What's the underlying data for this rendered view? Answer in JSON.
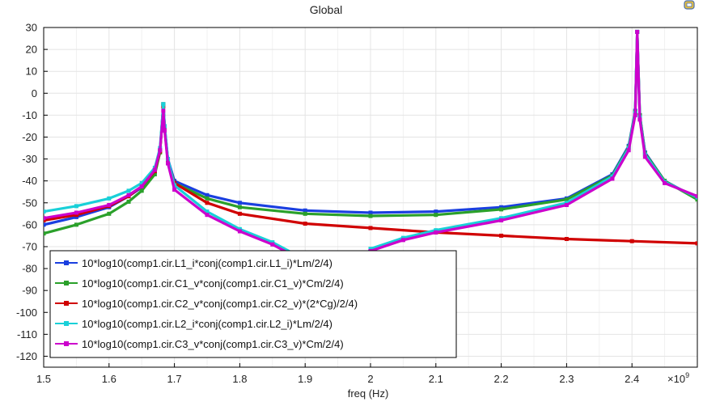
{
  "chart_data": {
    "type": "line",
    "title": "Global",
    "xlabel": "freq (Hz)",
    "ylabel": "",
    "x_multiplier": "×10",
    "x_multiplier_exp": "9",
    "xlim": [
      1.5,
      2.5
    ],
    "ylim": [
      -125,
      30
    ],
    "xticks": [
      "1.5",
      "1.6",
      "1.7",
      "1.8",
      "1.9",
      "2",
      "2.1",
      "2.2",
      "2.3",
      "2.4"
    ],
    "xtick_values": [
      1.5,
      1.6,
      1.7,
      1.8,
      1.9,
      2.0,
      2.1,
      2.2,
      2.3,
      2.4
    ],
    "yticks": [
      "30",
      "20",
      "10",
      "0",
      "-10",
      "-20",
      "-30",
      "-40",
      "-50",
      "-60",
      "-70",
      "-80",
      "-90",
      "-100",
      "-110",
      "-120"
    ],
    "ytick_values": [
      30,
      20,
      10,
      0,
      -10,
      -20,
      -30,
      -40,
      -50,
      -60,
      -70,
      -80,
      -90,
      -100,
      -110,
      -120
    ],
    "grid": true,
    "legend_position": "bottom-left",
    "series": [
      {
        "name": "10*log10(comp1.cir.L1_i*conj(comp1.cir.L1_i)*Lm/2/4)",
        "color": "#1a3fe0",
        "x": [
          1.5,
          1.55,
          1.6,
          1.63,
          1.65,
          1.67,
          1.678,
          1.683,
          1.685,
          1.69,
          1.7,
          1.75,
          1.8,
          1.9,
          2.0,
          2.1,
          2.2,
          2.3,
          2.37,
          2.395,
          2.405,
          2.408,
          2.412,
          2.42,
          2.45,
          2.5
        ],
        "y": [
          -60,
          -56.5,
          -52,
          -47,
          -43,
          -36,
          -26,
          -5,
          -15,
          -30,
          -40,
          -46.5,
          -50,
          -53.5,
          -54.5,
          -54,
          -52,
          -48,
          -37,
          -24,
          -8,
          28,
          -10,
          -27,
          -40,
          -48
        ]
      },
      {
        "name": "10*log10(comp1.cir.C1_v*conj(comp1.cir.C1_v)*Cm/2/4)",
        "color": "#2aa02a",
        "x": [
          1.5,
          1.55,
          1.6,
          1.63,
          1.65,
          1.67,
          1.678,
          1.683,
          1.685,
          1.69,
          1.7,
          1.75,
          1.8,
          1.9,
          2.0,
          2.1,
          2.2,
          2.3,
          2.37,
          2.395,
          2.405,
          2.408,
          2.412,
          2.42,
          2.45,
          2.5
        ],
        "y": [
          -64,
          -60,
          -55,
          -49.5,
          -44.5,
          -37,
          -27,
          -5,
          -16,
          -31,
          -41,
          -48,
          -52,
          -55,
          -56,
          -55.5,
          -53,
          -48.5,
          -37.5,
          -24.5,
          -8.5,
          28,
          -10,
          -27.5,
          -40,
          -48.5
        ]
      },
      {
        "name": "10*log10(comp1.cir.C2_v*conj(comp1.cir.C2_v)*(2*Cg)/2/4)",
        "color": "#d00000",
        "x": [
          1.5,
          1.55,
          1.6,
          1.63,
          1.65,
          1.67,
          1.678,
          1.683,
          1.685,
          1.69,
          1.7,
          1.75,
          1.8,
          1.9,
          2.0,
          2.1,
          2.2,
          2.3,
          2.4,
          2.5
        ],
        "y": [
          -58,
          -55.5,
          -51.5,
          -47,
          -42.5,
          -35.5,
          -26.5,
          -6,
          -16,
          -31,
          -41,
          -50,
          -55,
          -59.5,
          -61.5,
          -63.5,
          -65,
          -66.5,
          -67.5,
          -68.5
        ]
      },
      {
        "name": "10*log10(comp1.cir.L2_i*conj(comp1.cir.L2_i)*Lm/2/4)",
        "color": "#19d0d8",
        "x": [
          1.5,
          1.55,
          1.6,
          1.63,
          1.65,
          1.67,
          1.678,
          1.683,
          1.685,
          1.69,
          1.7,
          1.75,
          1.8,
          1.85,
          1.9,
          1.93,
          1.95,
          1.97,
          2.0,
          2.05,
          2.1,
          2.2,
          2.3,
          2.37,
          2.395,
          2.405,
          2.408,
          2.412,
          2.42,
          2.45,
          2.5
        ],
        "y": [
          -54,
          -51.5,
          -48,
          -44.5,
          -41,
          -34,
          -25,
          -5,
          -15,
          -30,
          -42,
          -54,
          -62,
          -68,
          -76,
          -84,
          -90,
          -84,
          -71,
          -66,
          -62.5,
          -57,
          -50,
          -38,
          -25,
          -9,
          28,
          -11,
          -28,
          -40.5,
          -47.5
        ]
      },
      {
        "name": "10*log10(comp1.cir.C3_v*conj(comp1.cir.C3_v)*Cm/2/4)",
        "color": "#cc00cc",
        "x": [
          1.5,
          1.55,
          1.6,
          1.63,
          1.65,
          1.67,
          1.678,
          1.683,
          1.685,
          1.69,
          1.7,
          1.75,
          1.8,
          1.85,
          1.9,
          1.93,
          1.95,
          1.97,
          2.0,
          2.05,
          2.1,
          2.2,
          2.3,
          2.37,
          2.395,
          2.405,
          2.408,
          2.412,
          2.42,
          2.45,
          2.5
        ],
        "y": [
          -57,
          -54.5,
          -51,
          -46.5,
          -42.5,
          -35,
          -26,
          -8,
          -17,
          -32,
          -44,
          -55.5,
          -63,
          -69,
          -77,
          -85,
          -91,
          -85,
          -72,
          -67,
          -63.5,
          -58,
          -51,
          -39,
          -26,
          -10,
          28,
          -12,
          -29,
          -41,
          -47
        ]
      }
    ]
  }
}
